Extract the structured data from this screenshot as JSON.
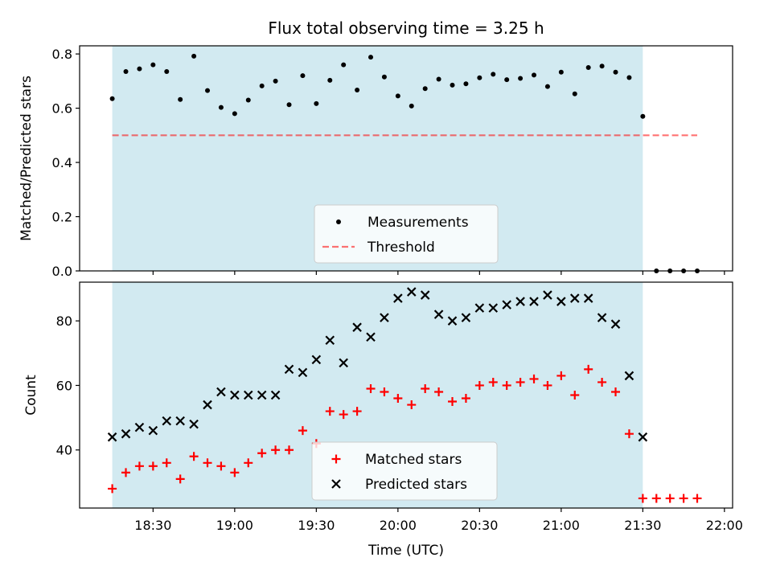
{
  "figure": {
    "title": "Flux total observing time = 3.25 h"
  },
  "x_axis": {
    "label": "Time (UTC)",
    "tick_labels": [
      "18:30",
      "19:00",
      "19:30",
      "20:00",
      "20:30",
      "21:00",
      "21:30",
      "22:00"
    ]
  },
  "colors": {
    "observing_span": "#add8e6",
    "measurements": "#000000",
    "threshold": "#ff0000",
    "matched": "#ff0000",
    "predicted": "#000000"
  },
  "chart_data": [
    {
      "type": "scatter",
      "panel": "top",
      "ylabel": "Matched/Predicted stars",
      "ylim": [
        0,
        0.83
      ],
      "yticks": [
        "0.0",
        "0.2",
        "0.4",
        "0.6",
        "0.8"
      ],
      "xlim": [
        "18:03",
        "22:03"
      ],
      "observing_span": [
        "18:15",
        "21:30"
      ],
      "threshold": {
        "name": "Threshold",
        "value": 0.5,
        "x_range": [
          "18:15",
          "21:50"
        ]
      },
      "legend": {
        "placement": "bottom-center",
        "entries": [
          "Measurements",
          "Threshold"
        ]
      },
      "series": [
        {
          "name": "Measurements",
          "marker": "dot",
          "x": [
            "18:15",
            "18:20",
            "18:25",
            "18:30",
            "18:35",
            "18:40",
            "18:45",
            "18:50",
            "18:55",
            "19:00",
            "19:05",
            "19:10",
            "19:15",
            "19:20",
            "19:25",
            "19:30",
            "19:35",
            "19:40",
            "19:45",
            "19:50",
            "19:55",
            "20:00",
            "20:05",
            "20:10",
            "20:15",
            "20:20",
            "20:25",
            "20:30",
            "20:35",
            "20:40",
            "20:45",
            "20:50",
            "20:55",
            "21:00",
            "21:05",
            "21:10",
            "21:15",
            "21:20",
            "21:25",
            "21:30",
            "21:35",
            "21:40",
            "21:45",
            "21:50"
          ],
          "values": [
            0.635,
            0.735,
            0.745,
            0.76,
            0.735,
            0.632,
            0.792,
            0.665,
            0.603,
            0.58,
            0.63,
            0.682,
            0.7,
            0.613,
            0.72,
            0.617,
            0.703,
            0.76,
            0.667,
            0.788,
            0.715,
            0.645,
            0.608,
            0.672,
            0.707,
            0.685,
            0.69,
            0.712,
            0.725,
            0.705,
            0.71,
            0.722,
            0.68,
            0.733,
            0.653,
            0.75,
            0.755,
            0.733,
            0.713,
            0.57,
            0.0,
            0.0,
            0.0,
            0.0
          ]
        }
      ]
    },
    {
      "type": "scatter",
      "panel": "bottom",
      "ylabel": "Count",
      "ylim": [
        22,
        92
      ],
      "yticks": [
        "40",
        "60",
        "80"
      ],
      "xlim": [
        "18:03",
        "22:03"
      ],
      "observing_span": [
        "18:15",
        "21:30"
      ],
      "legend": {
        "placement": "bottom-center",
        "entries": [
          "Matched stars",
          "Predicted stars"
        ]
      },
      "series": [
        {
          "name": "Matched stars",
          "marker": "plus",
          "x": [
            "18:15",
            "18:20",
            "18:25",
            "18:30",
            "18:35",
            "18:40",
            "18:45",
            "18:50",
            "18:55",
            "19:00",
            "19:05",
            "19:10",
            "19:15",
            "19:20",
            "19:25",
            "19:30",
            "19:35",
            "19:40",
            "19:45",
            "19:50",
            "19:55",
            "20:00",
            "20:05",
            "20:10",
            "20:15",
            "20:20",
            "20:25",
            "20:30",
            "20:35",
            "20:40",
            "20:45",
            "20:50",
            "20:55",
            "21:00",
            "21:05",
            "21:10",
            "21:15",
            "21:20",
            "21:25",
            "21:30",
            "21:35",
            "21:40",
            "21:45",
            "21:50"
          ],
          "values": [
            28,
            33,
            35,
            35,
            36,
            31,
            38,
            36,
            35,
            33,
            36,
            39,
            40,
            40,
            46,
            42,
            52,
            51,
            52,
            59,
            58,
            56,
            54,
            59,
            58,
            55,
            56,
            60,
            61,
            60,
            61,
            62,
            60,
            63,
            57,
            65,
            61,
            58,
            45,
            25,
            25,
            25,
            25,
            25
          ]
        },
        {
          "name": "Predicted stars",
          "marker": "x",
          "x": [
            "18:15",
            "18:20",
            "18:25",
            "18:30",
            "18:35",
            "18:40",
            "18:45",
            "18:50",
            "18:55",
            "19:00",
            "19:05",
            "19:10",
            "19:15",
            "19:20",
            "19:25",
            "19:30",
            "19:35",
            "19:40",
            "19:45",
            "19:50",
            "19:55",
            "20:00",
            "20:05",
            "20:10",
            "20:15",
            "20:20",
            "20:25",
            "20:30",
            "20:35",
            "20:40",
            "20:45",
            "20:50",
            "20:55",
            "21:00",
            "21:05",
            "21:10",
            "21:15",
            "21:20",
            "21:25",
            "21:30"
          ],
          "values": [
            44,
            45,
            47,
            46,
            49,
            49,
            48,
            54,
            58,
            57,
            57,
            57,
            57,
            65,
            64,
            68,
            74,
            67,
            78,
            75,
            81,
            87,
            89,
            88,
            82,
            80,
            81,
            84,
            84,
            85,
            86,
            86,
            88,
            86,
            87,
            87,
            81,
            79,
            63,
            44
          ]
        }
      ]
    }
  ]
}
